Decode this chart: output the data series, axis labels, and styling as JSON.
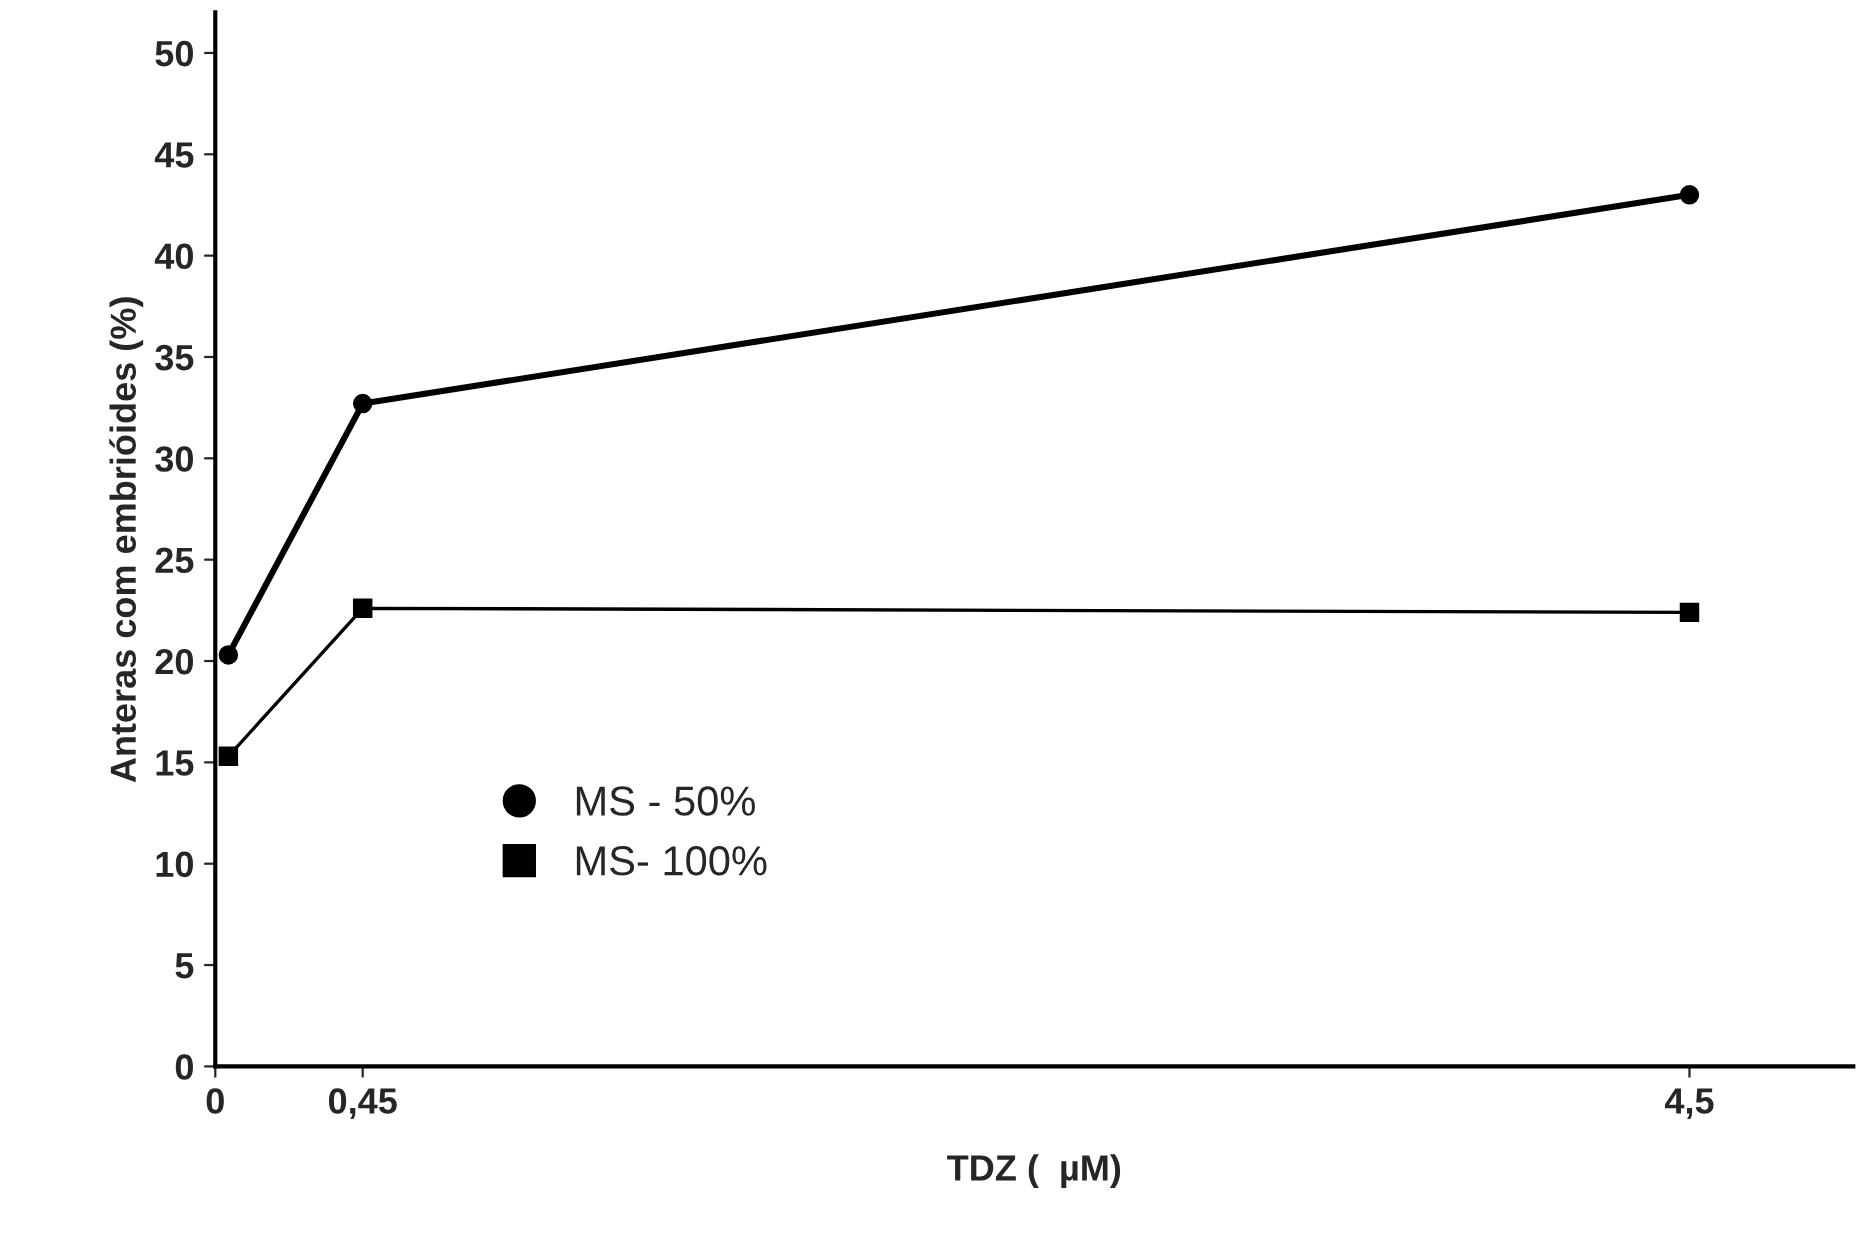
{
  "chart_data": {
    "type": "line",
    "xlabel": "TDZ (  µM)",
    "ylabel": "Anteras com embrióides (%)",
    "xlim": [
      0,
      5.0
    ],
    "xticks": [
      0,
      {
        "value": 0.45,
        "label": "0,45"
      },
      {
        "value": 4.5,
        "label": "4,5"
      }
    ],
    "ylim": [
      0,
      52
    ],
    "yticks": [
      0,
      5,
      10,
      15,
      20,
      25,
      30,
      35,
      40,
      45,
      50
    ],
    "series": [
      {
        "name": "MS - 50%",
        "color": "#000000",
        "marker": "circle",
        "x": [
          0.04,
          0.45,
          4.5
        ],
        "values": [
          20.3,
          32.7,
          43.0
        ]
      },
      {
        "name": "MS- 100%",
        "color": "#000000",
        "marker": "square",
        "x": [
          0.04,
          0.45,
          4.5
        ],
        "values": [
          15.3,
          22.6,
          22.4
        ]
      }
    ],
    "grid": false,
    "legend": "left"
  }
}
